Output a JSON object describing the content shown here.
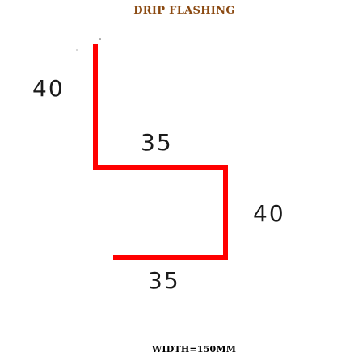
{
  "title": "DRIP FLASHING",
  "title_color": "#8B4A12",
  "line_color": "#ff0000",
  "dimensions": {
    "left_vertical": "40",
    "top_horizontal": "35",
    "right_vertical": "40",
    "bottom_horizontal": "35"
  },
  "width_label": "WIDTH=150MM"
}
